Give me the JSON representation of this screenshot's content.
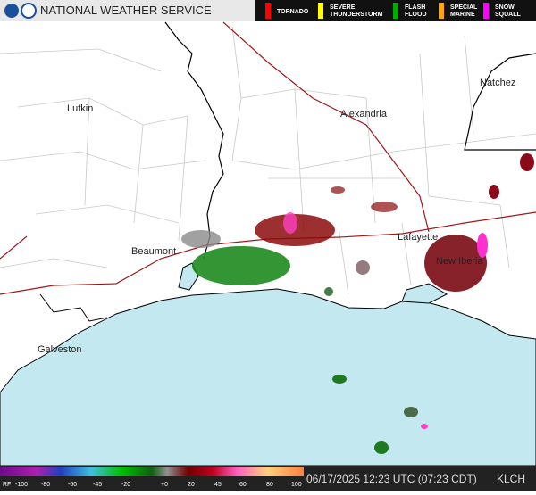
{
  "header": {
    "title": "NATIONAL WEATHER SERVICE",
    "warnings": [
      {
        "label": "TORNADO",
        "color": "#ff0000"
      },
      {
        "label": "SEVERE THUNDERSTORM",
        "color": "#ffff00"
      },
      {
        "label": "FLASH FLOOD",
        "color": "#00aa00"
      },
      {
        "label": "SPECIAL MARINE",
        "color": "#ffa500"
      },
      {
        "label": "SNOW SQUALL",
        "color": "#ff00ff"
      }
    ]
  },
  "map": {
    "cities": [
      "Natchez",
      "Lufkin",
      "Alexandria",
      "Beaumont",
      "Lafayette",
      "New Iberia",
      "Galveston"
    ]
  },
  "footer": {
    "scale_labels": [
      "RF",
      "-100",
      "-80",
      "-60",
      "-45",
      "-20",
      "+0",
      "20",
      "45",
      "60",
      "80",
      "100"
    ],
    "timestamp": "06/17/2025 12:23 UTC (07:23 CDT)",
    "station": "KLCH"
  }
}
